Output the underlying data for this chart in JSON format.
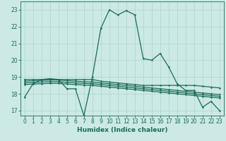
{
  "title": "",
  "xlabel": "Humidex (Indice chaleur)",
  "ylabel": "",
  "background_color": "#cce9e5",
  "grid_color": "#aad4ce",
  "line_color": "#1a6b5a",
  "xlim": [
    -0.5,
    23.5
  ],
  "ylim": [
    16.7,
    23.5
  ],
  "yticks": [
    17,
    18,
    19,
    20,
    21,
    22,
    23
  ],
  "xticks": [
    0,
    1,
    2,
    3,
    4,
    5,
    6,
    7,
    8,
    9,
    10,
    11,
    12,
    13,
    14,
    15,
    16,
    17,
    18,
    19,
    20,
    21,
    22,
    23
  ],
  "curves": [
    {
      "x": [
        0,
        1,
        2,
        3,
        4,
        5,
        6,
        7,
        8,
        9,
        10,
        11,
        12,
        13,
        14,
        15,
        16,
        17,
        18,
        19,
        20,
        21,
        22,
        23
      ],
      "y": [
        17.8,
        18.6,
        18.85,
        18.9,
        18.85,
        18.3,
        18.3,
        16.7,
        19.0,
        21.9,
        23.0,
        22.7,
        22.95,
        22.7,
        20.1,
        20.0,
        20.4,
        19.6,
        18.6,
        18.2,
        18.2,
        17.2,
        17.55,
        17.0
      ]
    },
    {
      "x": [
        0,
        1,
        2,
        3,
        4,
        5,
        6,
        7,
        8,
        9,
        10,
        11,
        12,
        13,
        14,
        15,
        16,
        17,
        18,
        19,
        20,
        21,
        22,
        23
      ],
      "y": [
        18.85,
        18.85,
        18.85,
        18.85,
        18.85,
        18.85,
        18.85,
        18.85,
        18.85,
        18.75,
        18.7,
        18.65,
        18.6,
        18.55,
        18.5,
        18.5,
        18.5,
        18.5,
        18.5,
        18.5,
        18.5,
        18.45,
        18.4,
        18.35
      ]
    },
    {
      "x": [
        0,
        1,
        2,
        3,
        4,
        5,
        6,
        7,
        8,
        9,
        10,
        11,
        12,
        13,
        14,
        15,
        16,
        17,
        18,
        19,
        20,
        21,
        22,
        23
      ],
      "y": [
        18.75,
        18.78,
        18.8,
        18.82,
        18.82,
        18.78,
        18.75,
        18.72,
        18.7,
        18.65,
        18.6,
        18.55,
        18.5,
        18.45,
        18.4,
        18.35,
        18.3,
        18.25,
        18.2,
        18.15,
        18.1,
        18.05,
        18.0,
        17.95
      ]
    },
    {
      "x": [
        0,
        1,
        2,
        3,
        4,
        5,
        6,
        7,
        8,
        9,
        10,
        11,
        12,
        13,
        14,
        15,
        16,
        17,
        18,
        19,
        20,
        21,
        22,
        23
      ],
      "y": [
        18.65,
        18.68,
        18.7,
        18.72,
        18.72,
        18.68,
        18.65,
        18.62,
        18.6,
        18.55,
        18.5,
        18.45,
        18.4,
        18.35,
        18.3,
        18.25,
        18.2,
        18.15,
        18.1,
        18.05,
        18.0,
        17.95,
        17.9,
        17.85
      ]
    },
    {
      "x": [
        0,
        1,
        2,
        3,
        4,
        5,
        6,
        7,
        8,
        9,
        10,
        11,
        12,
        13,
        14,
        15,
        16,
        17,
        18,
        19,
        20,
        21,
        22,
        23
      ],
      "y": [
        18.55,
        18.58,
        18.6,
        18.62,
        18.62,
        18.58,
        18.55,
        18.52,
        18.5,
        18.45,
        18.4,
        18.35,
        18.3,
        18.25,
        18.2,
        18.15,
        18.1,
        18.05,
        18.0,
        17.95,
        17.9,
        17.85,
        17.8,
        17.75
      ]
    }
  ]
}
